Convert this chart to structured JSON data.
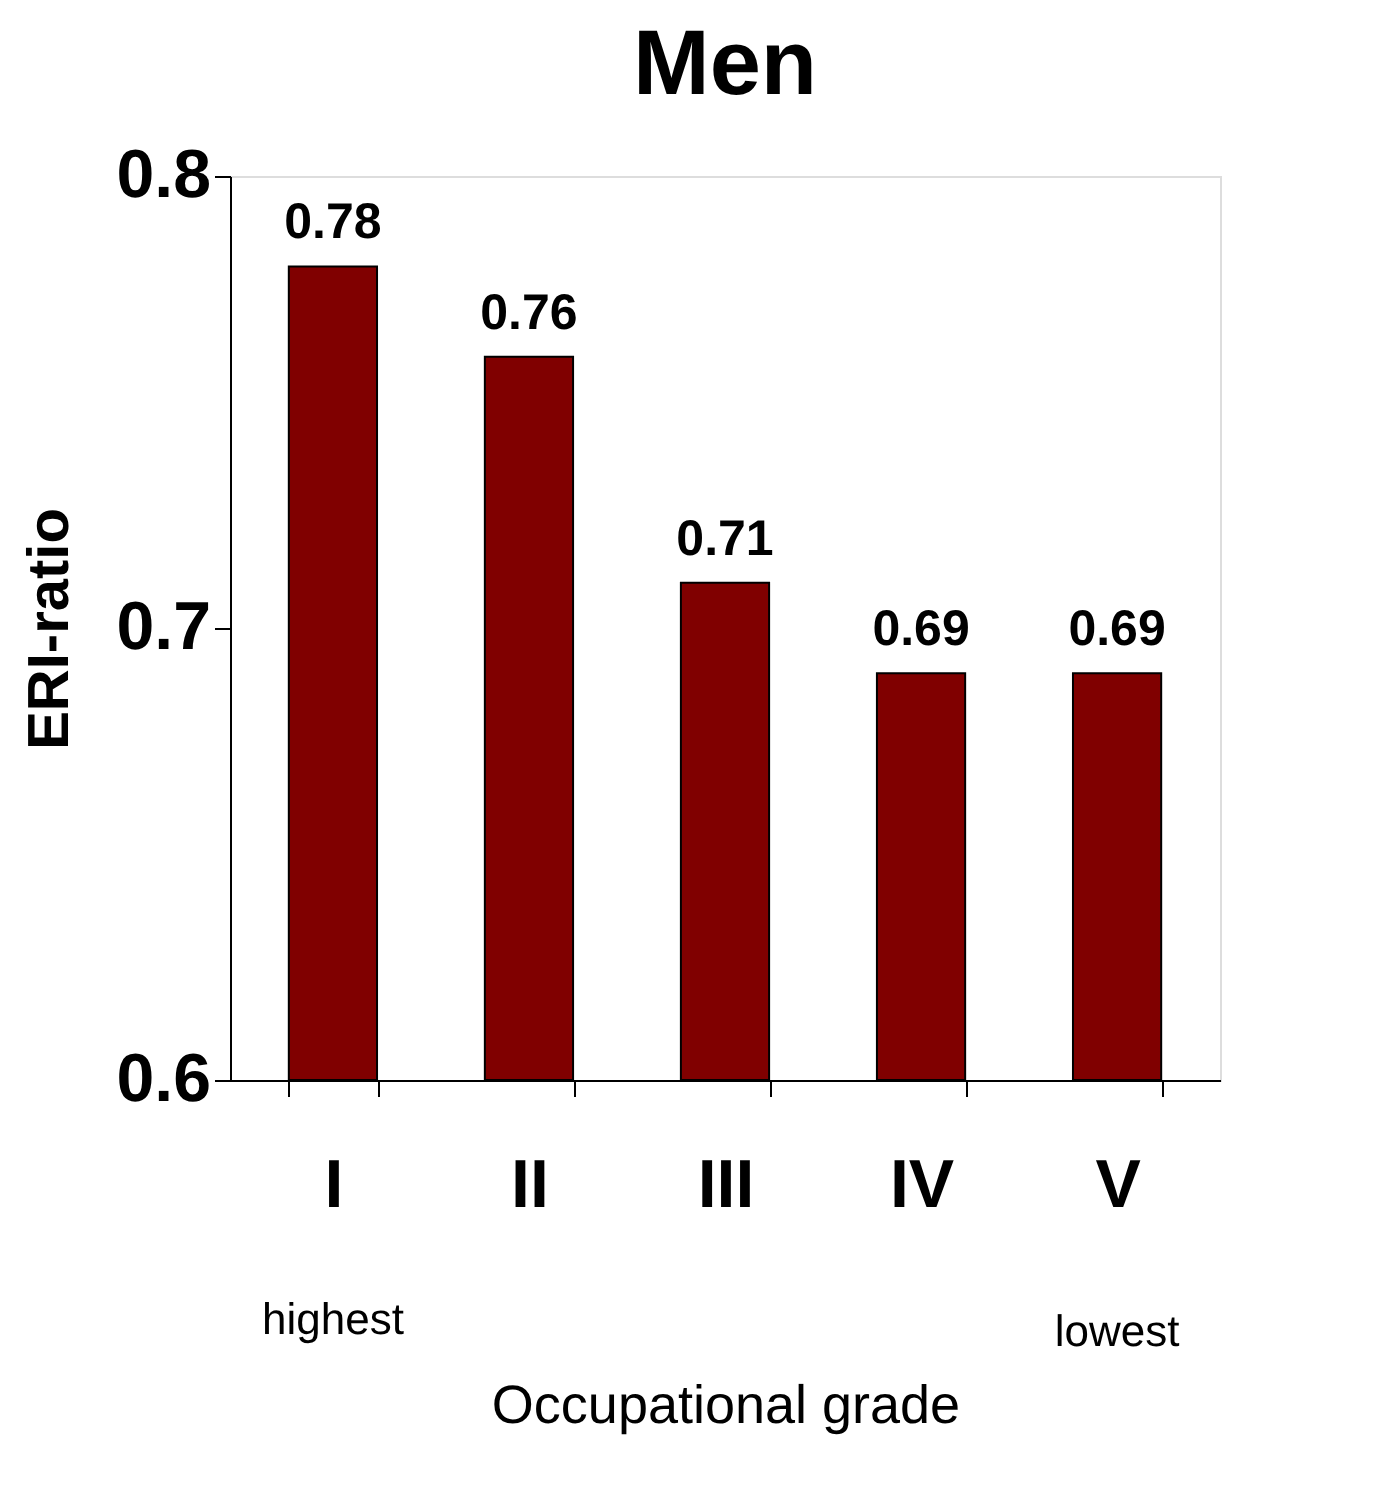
{
  "chart_data": {
    "type": "bar",
    "title": "Men",
    "xlabel": "Occupational grade",
    "ylabel": "ERI-ratio",
    "categories": [
      "I",
      "II",
      "III",
      "IV",
      "V"
    ],
    "values": [
      0.78,
      0.76,
      0.71,
      0.69,
      0.69
    ],
    "color": "#800000",
    "ylim": [
      0.6,
      0.8
    ],
    "yticks": [
      0.6,
      0.7,
      0.8
    ],
    "grid": false,
    "data_labels": true,
    "annotations": [
      "highest",
      "lowest"
    ]
  }
}
